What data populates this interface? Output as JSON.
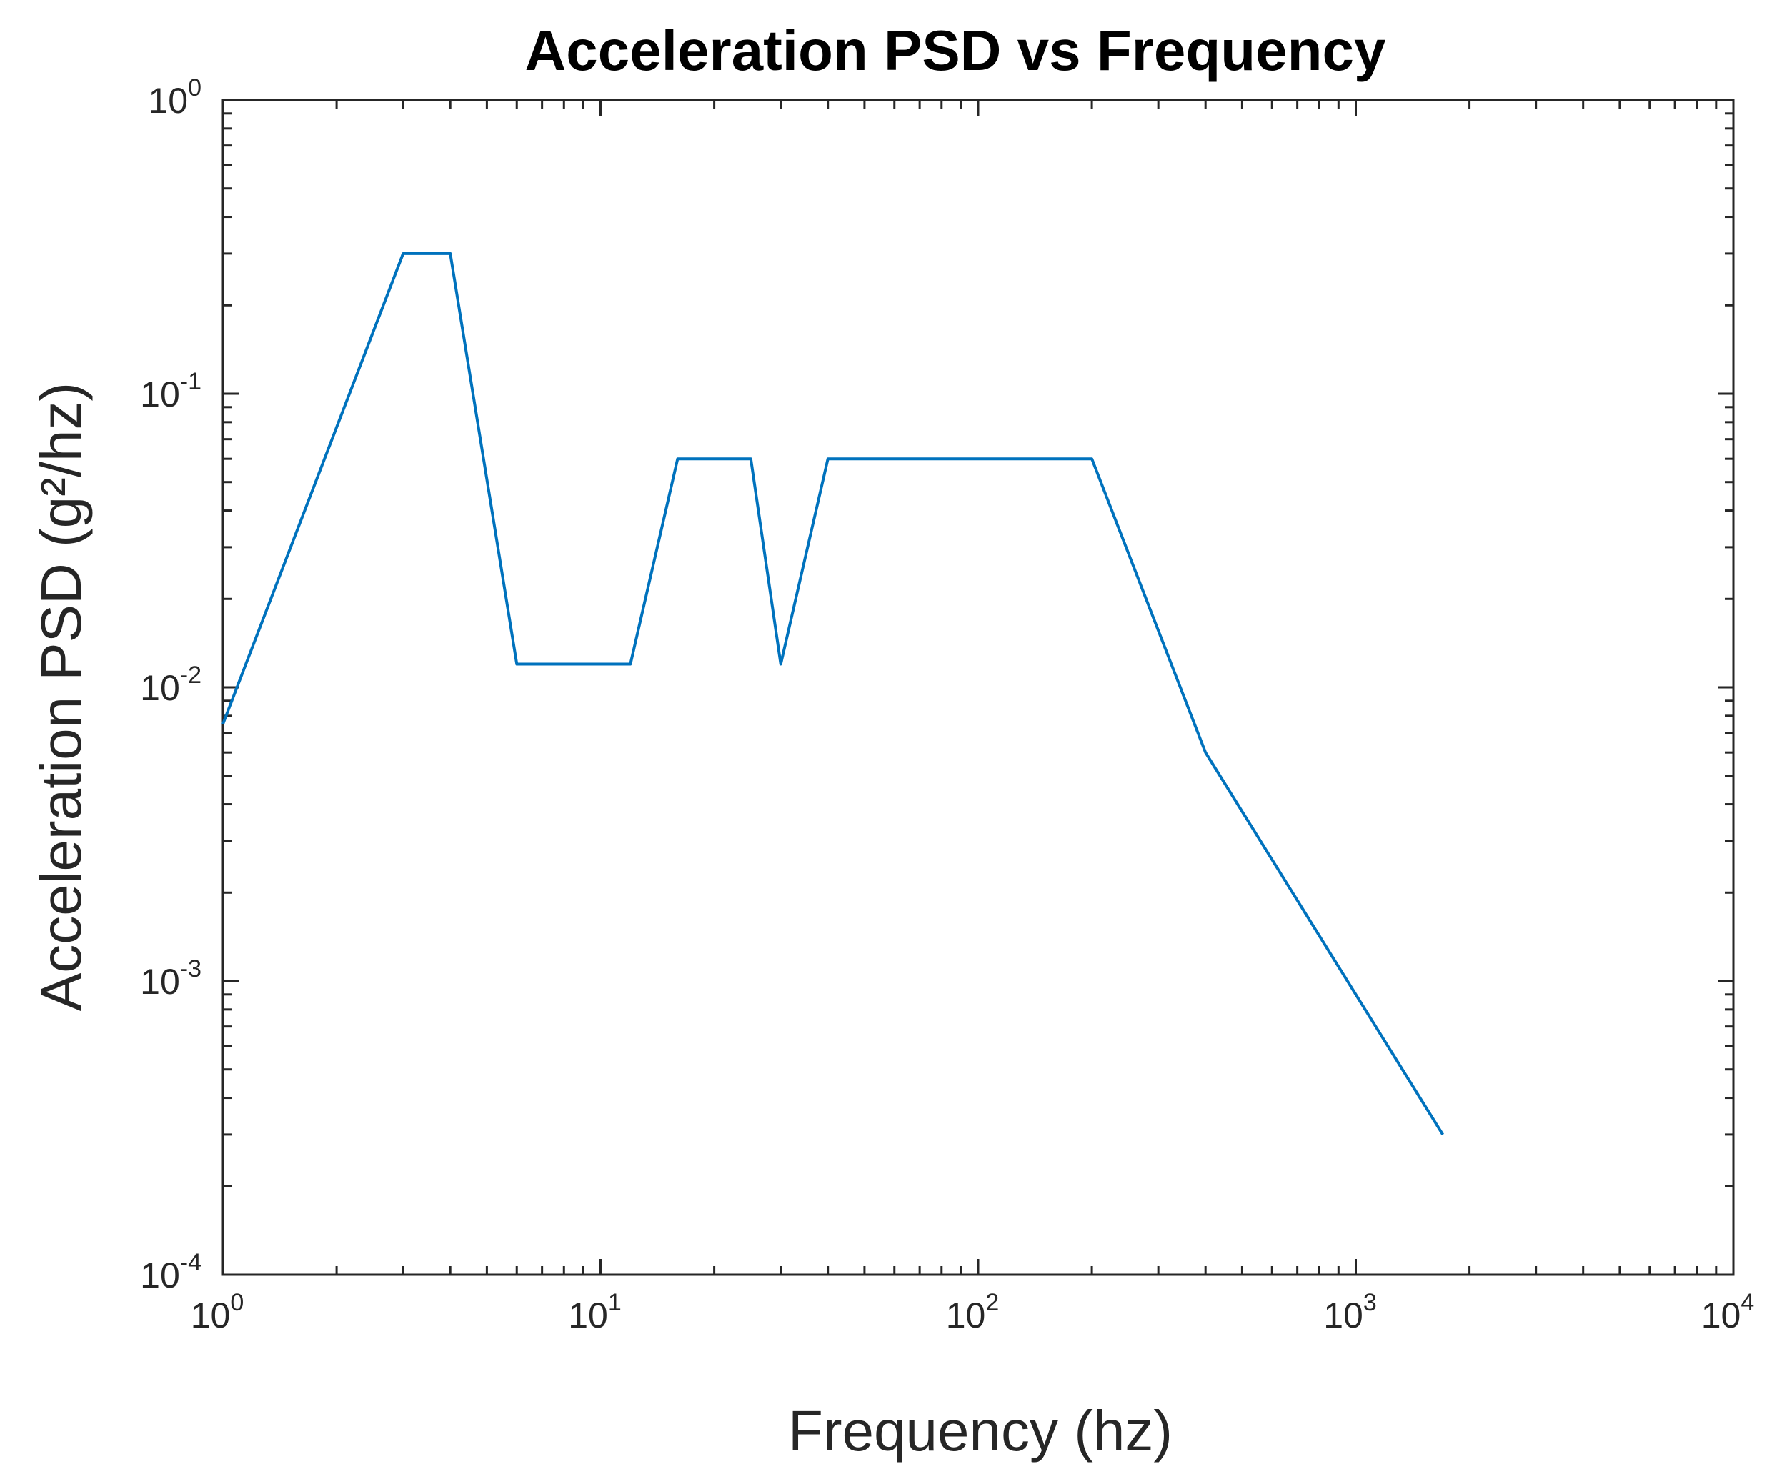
{
  "chart_data": {
    "type": "line",
    "title": "Acceleration PSD vs Frequency",
    "xlabel": "Frequency (hz)",
    "ylabel": "Acceleration PSD (g²/hz)",
    "xscale": "log",
    "yscale": "log",
    "xlim": [
      1,
      10000
    ],
    "ylim": [
      0.0001,
      1
    ],
    "grid": false,
    "box": true,
    "line_color": "#0072BD",
    "x_tick_labels": [
      {
        "base": "10",
        "exp": "0",
        "value": 1
      },
      {
        "base": "10",
        "exp": "1",
        "value": 10
      },
      {
        "base": "10",
        "exp": "2",
        "value": 100
      },
      {
        "base": "10",
        "exp": "3",
        "value": 1000
      },
      {
        "base": "10",
        "exp": "4",
        "value": 10000
      }
    ],
    "y_tick_labels": [
      {
        "base": "10",
        "exp": "0",
        "value": 1
      },
      {
        "base": "10",
        "exp": "-1",
        "value": 0.1
      },
      {
        "base": "10",
        "exp": "-2",
        "value": 0.01
      },
      {
        "base": "10",
        "exp": "-3",
        "value": 0.001
      },
      {
        "base": "10",
        "exp": "-4",
        "value": 0.0001
      }
    ],
    "series": [
      {
        "x": [
          1,
          3,
          4,
          6,
          12,
          16,
          25,
          30,
          40,
          200,
          400,
          1700
        ],
        "y": [
          0.0075,
          0.3,
          0.3,
          0.012,
          0.012,
          0.06,
          0.06,
          0.012,
          0.06,
          0.06,
          0.006,
          0.0003
        ]
      }
    ]
  }
}
